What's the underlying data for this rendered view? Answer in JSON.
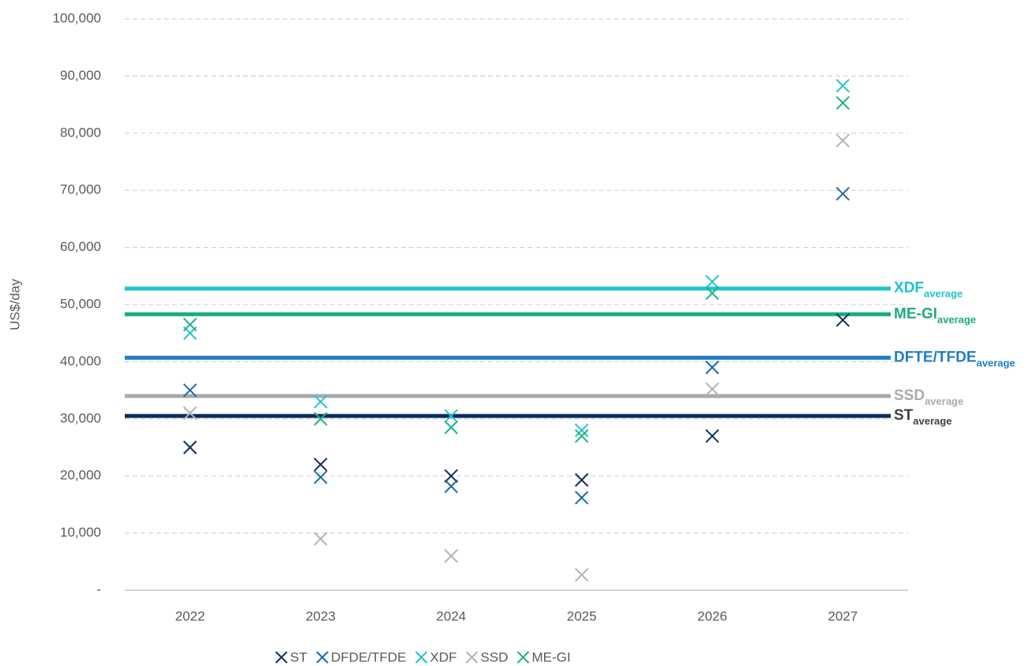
{
  "chart_data": {
    "type": "scatter",
    "ylabel": "US$/day",
    "categories": [
      "2022",
      "2023",
      "2024",
      "2025",
      "2026",
      "2027"
    ],
    "series": [
      {
        "name": "ST",
        "color": "#0f2f5c",
        "values": [
          25000,
          22000,
          20000,
          19300,
          27000,
          47300
        ]
      },
      {
        "name": "DFDE/TFDE",
        "color": "#1f6aa8",
        "values": [
          35000,
          19800,
          18200,
          16200,
          39000,
          69400
        ]
      },
      {
        "name": "XDF",
        "color": "#22c3cc",
        "values": [
          45000,
          33000,
          30500,
          28000,
          54000,
          88300
        ]
      },
      {
        "name": "SSD",
        "color": "#b3b3b3",
        "values": [
          31000,
          9000,
          6000,
          2700,
          35200,
          78700
        ]
      },
      {
        "name": "ME-GI",
        "color": "#1fb088",
        "values": [
          46500,
          30000,
          28500,
          27000,
          52000,
          85300
        ]
      }
    ],
    "averages": [
      {
        "name": "XDF",
        "sub": "average",
        "value": 52800,
        "color": "#1fc5cd"
      },
      {
        "name": "ME-GI",
        "sub": "average",
        "value": 48300,
        "color": "#1aab82"
      },
      {
        "name": "DFTE/TFDE",
        "sub": "average",
        "value": 40700,
        "color": "#1e7ec3"
      },
      {
        "name": "SSD",
        "sub": "average",
        "value": 34000,
        "color": "#aaaaaa"
      },
      {
        "name": "ST",
        "sub": "average",
        "value": 30500,
        "color": "#0b2e5a",
        "label_color": "#404040"
      }
    ],
    "ylim": [
      0,
      100000
    ],
    "yticks": [
      {
        "value": 0,
        "label": "-"
      },
      {
        "value": 10000,
        "label": "10,000"
      },
      {
        "value": 20000,
        "label": "20,000"
      },
      {
        "value": 30000,
        "label": "30,000"
      },
      {
        "value": 40000,
        "label": "40,000"
      },
      {
        "value": 50000,
        "label": "50,000"
      },
      {
        "value": 60000,
        "label": "60,000"
      },
      {
        "value": 70000,
        "label": "70,000"
      },
      {
        "value": 80000,
        "label": "80,000"
      },
      {
        "value": 90000,
        "label": "90,000"
      },
      {
        "value": 100000,
        "label": "100,000"
      }
    ],
    "grid": true,
    "legend": "bottom"
  }
}
